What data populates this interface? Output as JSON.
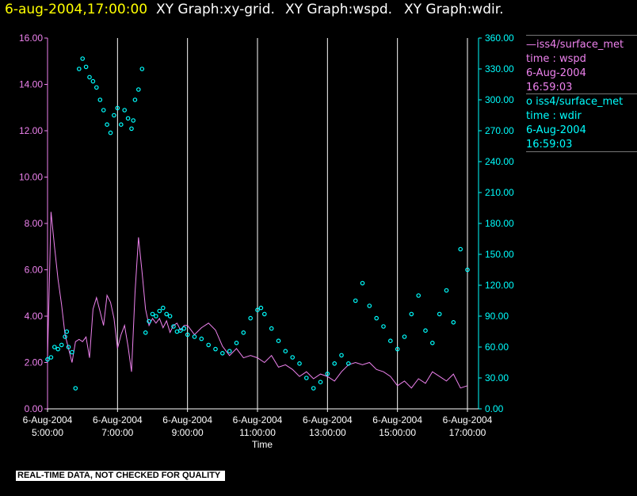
{
  "header": {
    "timestamp": "6-aug-2004,17:00:00",
    "graph1": "XY Graph:xy-grid.",
    "graph2": "XY Graph:wspd.",
    "graph3": "XY Graph:wdir."
  },
  "legend": {
    "wspd": {
      "line1": "—iss4/surface_met",
      "line2": "time : wspd",
      "line3": "6-Aug-2004",
      "line4": "16:59:03"
    },
    "wdir": {
      "line1": "o iss4/surface_met",
      "line2": "time : wdir",
      "line3": "6-Aug-2004",
      "line4": "16:59:03"
    }
  },
  "disclaimer": "REAL-TIME DATA, NOT CHECKED FOR QUALITY",
  "colors": {
    "background": "#000000",
    "wspd": "#ee82ee",
    "wdir": "#00ffff",
    "grid": "#ffffff",
    "title_time": "#ffff00"
  },
  "chart_data": {
    "type": "line",
    "xlabel": "Time",
    "x_ticks": [
      {
        "date": "6-Aug-2004",
        "time": "5:00:00",
        "hour": 5
      },
      {
        "date": "6-Aug-2004",
        "time": "7:00:00",
        "hour": 7
      },
      {
        "date": "6-Aug-2004",
        "time": "9:00:00",
        "hour": 9
      },
      {
        "date": "6-Aug-2004",
        "time": "11:00:00",
        "hour": 11
      },
      {
        "date": "6-Aug-2004",
        "time": "13:00:00",
        "hour": 13
      },
      {
        "date": "6-Aug-2004",
        "time": "15:00:00",
        "hour": 15
      },
      {
        "date": "6-Aug-2004",
        "time": "17:00:00",
        "hour": 17
      }
    ],
    "xlim": [
      5,
      17
    ],
    "grid": "vertical",
    "left_axis": {
      "ylim": [
        0,
        16
      ],
      "ticks": [
        "0.00",
        "2.00",
        "4.00",
        "6.00",
        "8.00",
        "10.00",
        "12.00",
        "14.00",
        "16.00"
      ]
    },
    "right_axis": {
      "ylim": [
        0,
        360
      ],
      "ticks": [
        "0.00",
        "30.00",
        "60.00",
        "90.00",
        "120.00",
        "150.00",
        "180.00",
        "210.00",
        "240.00",
        "270.00",
        "300.00",
        "330.00",
        "360.00"
      ]
    },
    "series": [
      {
        "name": "iss4/surface_met time : wspd",
        "style": "line",
        "axis": "left",
        "x": [
          5.0,
          5.1,
          5.2,
          5.3,
          5.4,
          5.5,
          5.6,
          5.7,
          5.8,
          5.9,
          6.0,
          6.1,
          6.2,
          6.3,
          6.4,
          6.5,
          6.6,
          6.7,
          6.8,
          6.9,
          7.0,
          7.1,
          7.2,
          7.3,
          7.4,
          7.5,
          7.6,
          7.7,
          7.8,
          7.9,
          8.0,
          8.1,
          8.2,
          8.3,
          8.4,
          8.5,
          8.6,
          8.7,
          8.8,
          8.9,
          9.0,
          9.2,
          9.4,
          9.6,
          9.8,
          10.0,
          10.2,
          10.4,
          10.6,
          10.8,
          11.0,
          11.2,
          11.4,
          11.6,
          11.8,
          12.0,
          12.2,
          12.4,
          12.6,
          12.8,
          13.0,
          13.2,
          13.4,
          13.6,
          13.8,
          14.0,
          14.2,
          14.4,
          14.6,
          14.8,
          15.0,
          15.2,
          15.4,
          15.6,
          15.8,
          16.0,
          16.2,
          16.4,
          16.6,
          16.8,
          17.0
        ],
        "values": [
          2.2,
          8.5,
          7.0,
          5.6,
          4.5,
          3.2,
          2.6,
          2.0,
          2.9,
          3.0,
          2.9,
          3.1,
          2.2,
          4.3,
          4.8,
          4.2,
          3.6,
          4.9,
          4.6,
          3.9,
          2.6,
          3.2,
          3.6,
          2.7,
          1.6,
          5.0,
          7.4,
          5.9,
          4.3,
          3.6,
          3.9,
          3.7,
          3.9,
          3.5,
          3.8,
          3.3,
          3.6,
          3.7,
          3.4,
          3.6,
          3.6,
          3.2,
          3.5,
          3.7,
          3.4,
          2.7,
          2.3,
          2.6,
          2.2,
          2.3,
          2.2,
          2.0,
          2.3,
          1.8,
          1.9,
          1.7,
          1.4,
          1.6,
          1.3,
          1.5,
          1.4,
          1.2,
          1.6,
          1.9,
          2.0,
          1.9,
          2.0,
          1.7,
          1.6,
          1.4,
          1.0,
          1.2,
          0.9,
          1.3,
          1.1,
          1.6,
          1.4,
          1.2,
          1.5,
          0.9,
          1.0
        ]
      },
      {
        "name": "iss4/surface_met time : wdir",
        "style": "markers",
        "axis": "right",
        "x": [
          5.0,
          5.1,
          5.2,
          5.3,
          5.4,
          5.5,
          5.55,
          5.6,
          5.7,
          5.8,
          5.9,
          6.0,
          6.1,
          6.2,
          6.3,
          6.4,
          6.5,
          6.6,
          6.7,
          6.8,
          6.9,
          7.0,
          7.1,
          7.2,
          7.3,
          7.4,
          7.45,
          7.5,
          7.6,
          7.7,
          7.8,
          7.9,
          8.0,
          8.1,
          8.2,
          8.3,
          8.4,
          8.5,
          8.6,
          8.7,
          8.8,
          8.9,
          9.0,
          9.2,
          9.4,
          9.6,
          9.8,
          10.0,
          10.2,
          10.4,
          10.6,
          10.8,
          11.0,
          11.1,
          11.2,
          11.4,
          11.6,
          11.8,
          12.0,
          12.2,
          12.4,
          12.6,
          12.8,
          13.0,
          13.2,
          13.4,
          13.6,
          13.8,
          14.0,
          14.2,
          14.4,
          14.6,
          14.8,
          15.0,
          15.2,
          15.4,
          15.6,
          15.8,
          16.0,
          16.2,
          16.4,
          16.6,
          16.8,
          17.0
        ],
        "values": [
          48,
          50,
          60,
          58,
          62,
          70,
          75,
          60,
          55,
          20,
          330,
          340,
          332,
          322,
          318,
          312,
          300,
          290,
          276,
          268,
          285,
          292,
          276,
          290,
          282,
          272,
          280,
          300,
          310,
          330,
          74,
          85,
          92,
          90,
          95,
          98,
          92,
          90,
          80,
          75,
          76,
          78,
          72,
          70,
          68,
          62,
          58,
          54,
          56,
          64,
          74,
          88,
          96,
          98,
          92,
          78,
          66,
          56,
          50,
          44,
          30,
          20,
          26,
          34,
          44,
          52,
          44,
          105,
          122,
          100,
          88,
          80,
          66,
          58,
          70,
          92,
          110,
          76,
          64,
          92,
          115,
          84,
          155,
          135
        ]
      }
    ]
  }
}
